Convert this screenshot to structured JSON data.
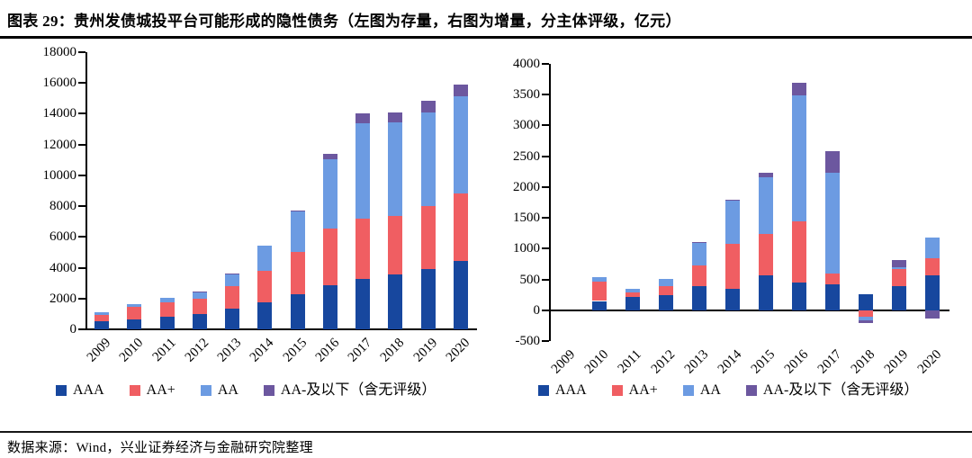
{
  "title": "图表 29：贵州发债城投平台可能形成的隐性债务（左图为存量，右图为增量，分主体评级，亿元）",
  "source": "数据来源：Wind，兴业证券经济与金融研究院整理",
  "colors": {
    "AAA": "#17479E",
    "AA_plus": "#F05E62",
    "AA": "#6C9BE2",
    "AA_minus_group": "#6C579F"
  },
  "legend_items": [
    {
      "label": "AAA",
      "color": "#17479E"
    },
    {
      "label": "AA+",
      "color": "#F05E62"
    },
    {
      "label": "AA",
      "color": "#6C9BE2"
    },
    {
      "label": "AA-及以下（含无评级）",
      "color": "#6C579F"
    }
  ],
  "chart_data": [
    {
      "id": "left",
      "type": "bar",
      "stacked": true,
      "description": "存量",
      "xlabel": "",
      "ylabel": "",
      "grid": false,
      "legend_position": "bottom",
      "categories": [
        "2009",
        "2010",
        "2011",
        "2012",
        "2013",
        "2014",
        "2015",
        "2016",
        "2017",
        "2018",
        "2019",
        "2020"
      ],
      "series": [
        {
          "name": "AAA",
          "color": "#17479E",
          "values": [
            500,
            650,
            840,
            1010,
            1350,
            1750,
            2290,
            2840,
            3280,
            3570,
            3920,
            4450
          ]
        },
        {
          "name": "AA+",
          "color": "#F05E62",
          "values": [
            450,
            820,
            930,
            980,
            1430,
            2060,
            2750,
            3730,
            3920,
            3820,
            4060,
            4400
          ]
        },
        {
          "name": "AA",
          "color": "#6C9BE2",
          "values": [
            150,
            190,
            280,
            430,
            790,
            1620,
            2590,
            4450,
            6180,
            6080,
            6080,
            6300
          ]
        },
        {
          "name": "AA-及以下（含无评级）",
          "color": "#6C579F",
          "values": [
            0,
            0,
            0,
            50,
            30,
            0,
            60,
            390,
            650,
            610,
            810,
            750
          ]
        }
      ],
      "ylim": [
        0,
        18000
      ],
      "y_ticks": [
        "18000",
        "16000",
        "14000",
        "12000",
        "10000",
        "8000",
        "6000",
        "4000",
        "2000",
        "0"
      ]
    },
    {
      "id": "right",
      "type": "bar",
      "stacked": true,
      "description": "增量",
      "xlabel": "",
      "ylabel": "",
      "grid": false,
      "legend_position": "bottom",
      "categories": [
        "2009",
        "2010",
        "2011",
        "2012",
        "2013",
        "2014",
        "2015",
        "2016",
        "2017",
        "2018",
        "2019",
        "2020"
      ],
      "series": [
        {
          "name": "AAA",
          "color": "#17479E",
          "values": [
            0,
            150,
            210,
            245,
            390,
            350,
            570,
            450,
            415,
            260,
            390,
            560
          ]
        },
        {
          "name": "AA+",
          "color": "#F05E62",
          "values": [
            0,
            310,
            75,
            145,
            340,
            730,
            675,
            1000,
            180,
            -110,
            275,
            280
          ]
        },
        {
          "name": "AA",
          "color": "#6C9BE2",
          "values": [
            0,
            75,
            60,
            120,
            365,
            700,
            915,
            2040,
            1635,
            -60,
            40,
            345
          ]
        },
        {
          "name": "AA-及以下（含无评级）",
          "color": "#6C579F",
          "values": [
            0,
            0,
            0,
            0,
            10,
            15,
            65,
            205,
            360,
            -40,
            105,
            -130
          ]
        }
      ],
      "ylim": [
        -500,
        4000
      ],
      "y_ticks": [
        "4000",
        "3500",
        "3000",
        "2500",
        "2000",
        "1500",
        "1000",
        "500",
        "0",
        "-500"
      ]
    }
  ]
}
